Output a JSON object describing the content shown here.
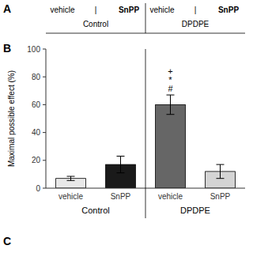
{
  "chart_data": {
    "type": "bar",
    "ylabel": "Maximal possible effect (%)",
    "categories": [
      "vehicle",
      "SnPP",
      "vehicle",
      "SnPP"
    ],
    "group_labels": [
      "Control",
      "DPDPE"
    ],
    "values": [
      7,
      17,
      60,
      12
    ],
    "errors": [
      1.5,
      6,
      7,
      5
    ],
    "colors": [
      "#e8e8e8",
      "#1a1a1a",
      "#666666",
      "#d4d4d4"
    ],
    "annotations": [
      [],
      [],
      [
        "+",
        "*",
        "#"
      ],
      []
    ],
    "ylim": [
      0,
      100
    ],
    "yticks": [
      0,
      20,
      40,
      60,
      80,
      100
    ],
    "grid": false,
    "panel_labels": [
      "A",
      "B",
      "C"
    ],
    "header": {
      "rows": [
        [
          "vehicle",
          "|",
          "SnPP",
          "vehicle",
          "|",
          "SnPP"
        ],
        [
          "Control",
          "DPDPE"
        ]
      ]
    }
  }
}
